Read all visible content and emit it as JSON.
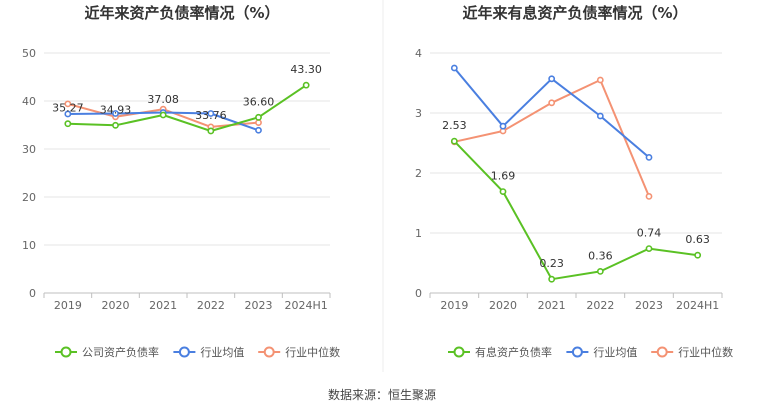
{
  "source_text": "数据来源：恒生聚源",
  "chart_data": [
    {
      "type": "line",
      "title": "近年来资产负债率情况（%）",
      "categories": [
        "2019",
        "2020",
        "2021",
        "2022",
        "2023",
        "2024H1"
      ],
      "ylim": [
        0,
        50
      ],
      "yticks": [
        0,
        10,
        20,
        30,
        40,
        50
      ],
      "grid": true,
      "legend_position": "bottom",
      "series": [
        {
          "name": "公司资产负债率",
          "color": "#5ac124",
          "values": [
            35.27,
            34.93,
            37.08,
            33.76,
            36.6,
            43.3
          ],
          "labels": [
            "35.27",
            "34.93",
            "37.08",
            "33.76",
            "36.60",
            "43.30"
          ]
        },
        {
          "name": "行业均值",
          "color": "#4a7fe0",
          "values": [
            37.3,
            37.4,
            37.6,
            37.4,
            33.9,
            null
          ],
          "labels": []
        },
        {
          "name": "行业中位数",
          "color": "#f49273",
          "values": [
            39.4,
            36.7,
            38.3,
            34.6,
            35.5,
            null
          ],
          "labels": []
        }
      ]
    },
    {
      "type": "line",
      "title": "近年来有息资产负债率情况（%）",
      "categories": [
        "2019",
        "2020",
        "2021",
        "2022",
        "2023",
        "2024H1"
      ],
      "ylim": [
        0,
        4
      ],
      "yticks": [
        0,
        1,
        2,
        3,
        4
      ],
      "grid": true,
      "legend_position": "bottom",
      "series": [
        {
          "name": "有息资产负债率",
          "color": "#5ac124",
          "values": [
            2.53,
            1.69,
            0.23,
            0.36,
            0.74,
            0.63
          ],
          "labels": [
            "2.53",
            "1.69",
            "0.23",
            "0.36",
            "0.74",
            "0.63"
          ]
        },
        {
          "name": "行业均值",
          "color": "#4a7fe0",
          "values": [
            3.75,
            2.78,
            3.57,
            2.95,
            2.26,
            null
          ],
          "labels": []
        },
        {
          "name": "行业中位数",
          "color": "#f49273",
          "values": [
            2.52,
            2.7,
            3.17,
            3.55,
            1.61,
            null
          ],
          "labels": []
        }
      ]
    }
  ]
}
